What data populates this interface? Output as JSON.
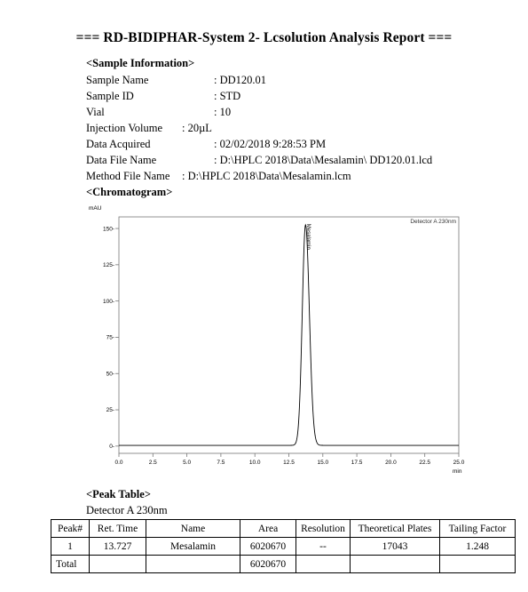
{
  "report": {
    "title": "=== RD-BIDIPHAR-System 2- Lcsolution Analysis Report ==="
  },
  "sample_info": {
    "heading": "<Sample Information>",
    "rows": [
      {
        "label": "Sample Name",
        "value": ": DD120.01"
      },
      {
        "label": "Sample ID",
        "value": ": STD"
      },
      {
        "label": "Vial",
        "value": ": 10"
      },
      {
        "label": "Injection Volume",
        "value": ": 20µL"
      },
      {
        "label": "Data Acquired",
        "value": ": 02/02/2018 9:28:53 PM"
      },
      {
        "label": "Data File Name",
        "value": ": D:\\HPLC 2018\\Data\\Mesalamin\\ DD120.01.lcd"
      },
      {
        "label": "Method File Name",
        "value": ": D:\\HPLC 2018\\Data\\Mesalamin.lcm"
      }
    ]
  },
  "chromatogram": {
    "heading": "<Chromatogram>"
  },
  "chart_data": {
    "type": "line",
    "ylabel": "mAU",
    "xlabel": "min",
    "legend": "Detector A 230nm",
    "legend_position": "top-right",
    "xlim": [
      0,
      25
    ],
    "ylim": [
      -5,
      158
    ],
    "x_ticks": [
      "0.0",
      "2.5",
      "5.0",
      "7.5",
      "10.0",
      "12.5",
      "15.0",
      "17.5",
      "20.0",
      "22.5",
      "25.0"
    ],
    "y_ticks": [
      "0",
      "25",
      "50",
      "75",
      "100",
      "125",
      "150"
    ],
    "grid": false,
    "series": [
      {
        "peak_time": 13.727,
        "peak_height": 152,
        "baseline": 0.5
      }
    ],
    "annotations": [
      {
        "x": 13.727,
        "text": "Mesalamin"
      }
    ]
  },
  "peak_table": {
    "heading": "<Peak Table>",
    "detector": "Detector A 230nm",
    "headers": [
      "Peak#",
      "Ret. Time",
      "Name",
      "Area",
      "Resolution",
      "Theoretical Plates",
      "Tailing Factor"
    ],
    "rows": [
      [
        "1",
        "13.727",
        "Mesalamin",
        "6020670",
        "--",
        "17043",
        "1.248"
      ],
      [
        "Total",
        "",
        "",
        "6020670",
        "",
        "",
        ""
      ]
    ]
  }
}
